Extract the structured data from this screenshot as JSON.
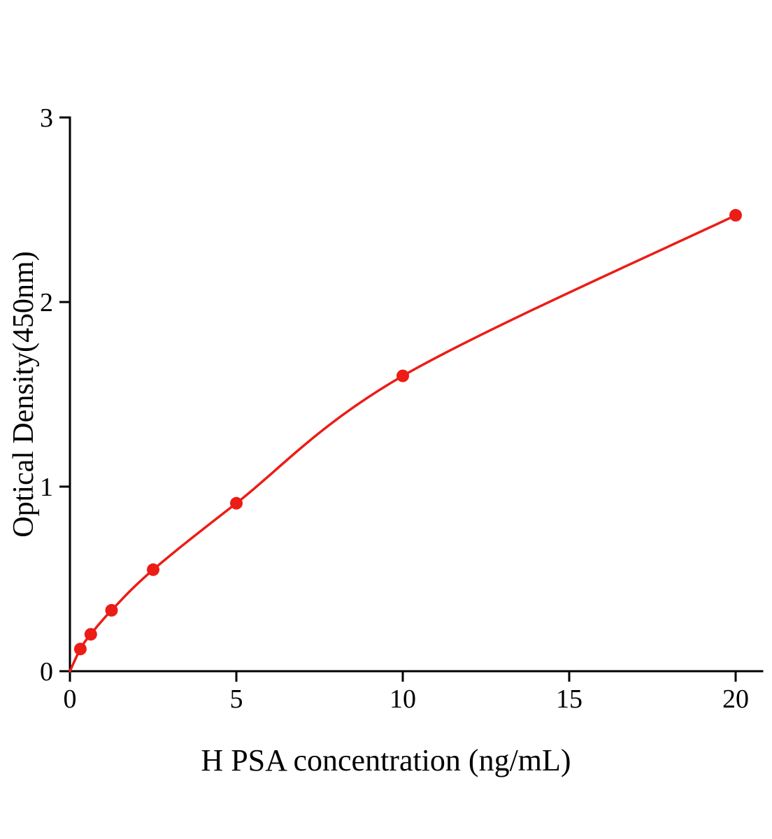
{
  "chart_data": {
    "type": "scatter",
    "title": "",
    "xlabel": "H PSA concentration (ng/mL)",
    "ylabel": "Optical Density(450nm)",
    "x": [
      0.3125,
      0.625,
      1.25,
      2.5,
      5,
      10,
      20
    ],
    "y": [
      0.12,
      0.2,
      0.33,
      0.55,
      0.91,
      1.6,
      2.47
    ],
    "curve_start": [
      0,
      0
    ],
    "xlim": [
      0,
      20.8
    ],
    "ylim": [
      0,
      3
    ],
    "xticks": [
      0,
      5,
      10,
      15,
      20
    ],
    "yticks": [
      0,
      1,
      2,
      3
    ],
    "line": true,
    "grid": false,
    "legend": null,
    "line_color": "#ec1c16",
    "marker_color": "#ec1c16",
    "axis_color": "#000000"
  }
}
